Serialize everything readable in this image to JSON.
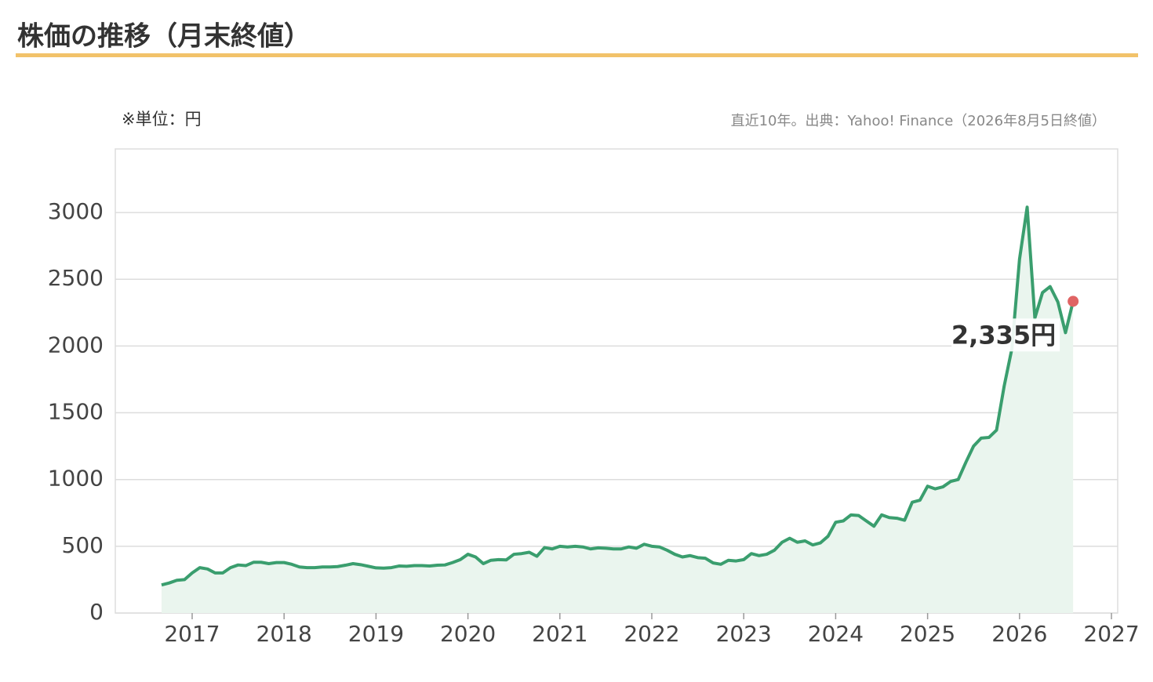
{
  "header": {
    "title": "株価の推移（月末終値）"
  },
  "chart_data": {
    "type": "line",
    "unit_note": "※単位：円",
    "source": "直近10年。出典：Yahoo! Finance（2026年8月5日終値）",
    "x": [
      2016.667,
      2016.75,
      2016.833,
      2016.917,
      2017,
      2017.083,
      2017.167,
      2017.25,
      2017.333,
      2017.417,
      2017.5,
      2017.583,
      2017.667,
      2017.75,
      2017.833,
      2017.917,
      2018,
      2018.083,
      2018.167,
      2018.25,
      2018.333,
      2018.417,
      2018.5,
      2018.583,
      2018.667,
      2018.75,
      2018.833,
      2018.917,
      2019,
      2019.083,
      2019.167,
      2019.25,
      2019.333,
      2019.417,
      2019.5,
      2019.583,
      2019.667,
      2019.75,
      2019.833,
      2019.917,
      2020,
      2020.083,
      2020.167,
      2020.25,
      2020.333,
      2020.417,
      2020.5,
      2020.583,
      2020.667,
      2020.75,
      2020.833,
      2020.917,
      2021,
      2021.083,
      2021.167,
      2021.25,
      2021.333,
      2021.417,
      2021.5,
      2021.583,
      2021.667,
      2021.75,
      2021.833,
      2021.917,
      2022,
      2022.083,
      2022.167,
      2022.25,
      2022.333,
      2022.417,
      2022.5,
      2022.583,
      2022.667,
      2022.75,
      2022.833,
      2022.917,
      2023,
      2023.083,
      2023.167,
      2023.25,
      2023.333,
      2023.417,
      2023.5,
      2023.583,
      2023.667,
      2023.75,
      2023.833,
      2023.917,
      2024,
      2024.083,
      2024.167,
      2024.25,
      2024.333,
      2024.417,
      2024.5,
      2024.583,
      2024.667,
      2024.75,
      2024.833,
      2024.917,
      2025,
      2025.083,
      2025.167,
      2025.25,
      2025.333,
      2025.417,
      2025.5,
      2025.583,
      2025.667,
      2025.75,
      2025.833,
      2025.917,
      2026,
      2026.083,
      2026.167,
      2026.25,
      2026.333,
      2026.417,
      2026.5,
      2026.583
    ],
    "series": [
      {
        "color": "#3a9e6e",
        "area_color": "#eaf5ee",
        "end_color": "#e06464",
        "values": [
          210,
          225,
          245,
          250,
          300,
          340,
          330,
          300,
          300,
          340,
          360,
          355,
          380,
          380,
          370,
          378,
          378,
          365,
          345,
          340,
          340,
          345,
          345,
          348,
          358,
          370,
          362,
          350,
          338,
          336,
          340,
          352,
          350,
          355,
          355,
          352,
          358,
          360,
          378,
          400,
          440,
          420,
          370,
          395,
          400,
          398,
          440,
          445,
          455,
          425,
          490,
          480,
          500,
          495,
          500,
          495,
          480,
          488,
          485,
          480,
          480,
          495,
          485,
          515,
          500,
          495,
          470,
          440,
          420,
          430,
          415,
          410,
          375,
          365,
          395,
          390,
          400,
          445,
          430,
          440,
          470,
          530,
          560,
          530,
          540,
          510,
          525,
          575,
          680,
          690,
          735,
          730,
          690,
          650,
          735,
          715,
          710,
          695,
          830,
          845,
          950,
          930,
          945,
          985,
          1000,
          1130,
          1250,
          1310,
          1315,
          1370,
          1700,
          1980,
          2650,
          3040,
          2210,
          2400,
          2445,
          2330,
          2100,
          2335
        ],
        "value_labels": [
          null,
          null,
          null,
          null,
          null,
          null,
          null,
          null,
          null,
          null,
          null,
          null,
          null,
          null,
          null,
          null,
          null,
          null,
          null,
          null,
          null,
          null,
          null,
          null,
          null,
          null,
          null,
          null,
          null,
          null,
          null,
          null,
          null,
          null,
          null,
          null,
          null,
          null,
          null,
          null,
          null,
          null,
          null,
          null,
          null,
          null,
          null,
          null,
          null,
          null,
          null,
          null,
          null,
          null,
          null,
          null,
          null,
          null,
          null,
          null,
          null,
          null,
          null,
          null,
          null,
          null,
          null,
          null,
          null,
          null,
          null,
          null,
          null,
          null,
          null,
          null,
          null,
          null,
          null,
          null,
          null,
          null,
          null,
          null,
          null,
          null,
          null,
          null,
          null,
          null,
          null,
          null,
          null,
          null,
          null,
          null,
          null,
          null,
          null,
          null,
          null,
          null,
          null,
          null,
          null,
          null,
          null,
          null,
          null,
          null,
          null,
          null,
          null,
          null,
          null,
          null,
          null,
          null,
          null,
          "2,335円"
        ]
      }
    ],
    "xlim": [
      2016.164,
      2027.068
    ],
    "xticks": [
      2017,
      2018,
      2019,
      2020,
      2021,
      2022,
      2023,
      2024,
      2025,
      2026,
      2027
    ],
    "ylim": [
      0,
      3476
    ],
    "yticks": [
      0,
      500,
      1000,
      1500,
      2000,
      2500,
      3000
    ],
    "grid": true
  }
}
